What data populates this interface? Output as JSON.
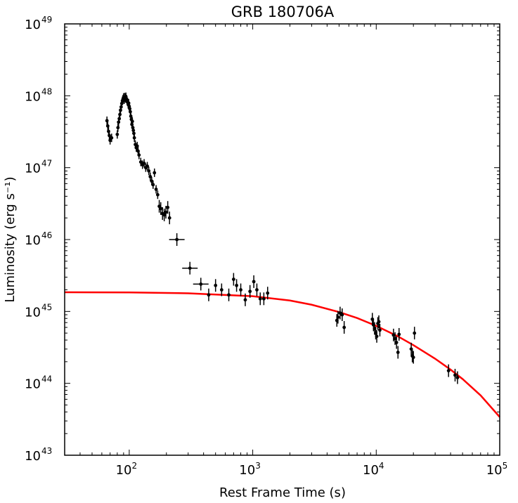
{
  "chart_data": {
    "type": "scatter",
    "title": "GRB 180706A",
    "xlabel": "Rest Frame Time (s)",
    "ylabel": "Luminosity (erg s⁻¹)",
    "xscale": "log",
    "yscale": "log",
    "xlim": [
      30,
      100000
    ],
    "ylim": [
      1e+43,
      1e+49
    ],
    "x_ticks": [
      {
        "base": "10",
        "exp": "2",
        "value": 100
      },
      {
        "base": "10",
        "exp": "3",
        "value": 1000
      },
      {
        "base": "10",
        "exp": "4",
        "value": 10000
      },
      {
        "base": "10",
        "exp": "5",
        "value": 100000
      }
    ],
    "y_ticks": [
      {
        "base": "10",
        "exp": "43",
        "value": 1e+43
      },
      {
        "base": "10",
        "exp": "44",
        "value": 1e+44
      },
      {
        "base": "10",
        "exp": "45",
        "value": 1e+45
      },
      {
        "base": "10",
        "exp": "46",
        "value": 1e+46
      },
      {
        "base": "10",
        "exp": "47",
        "value": 1e+47
      },
      {
        "base": "10",
        "exp": "48",
        "value": 1e+48
      },
      {
        "base": "10",
        "exp": "49",
        "value": 1e+49
      }
    ],
    "grid": false,
    "colors": {
      "data": "#000000",
      "model": "#ff0000"
    },
    "series": [
      {
        "kind": "points",
        "points": [
          {
            "x": 66,
            "y": 4.5e+47
          },
          {
            "x": 67,
            "y": 3.8e+47
          },
          {
            "x": 68,
            "y": 3.2e+47
          },
          {
            "x": 69,
            "y": 2.8e+47
          },
          {
            "x": 70,
            "y": 2.4e+47
          },
          {
            "x": 72,
            "y": 2.6e+47
          },
          {
            "x": 80,
            "y": 2.9e+47
          },
          {
            "x": 81,
            "y": 3.6e+47
          },
          {
            "x": 82,
            "y": 4.3e+47
          },
          {
            "x": 83,
            "y": 4.8e+47
          },
          {
            "x": 84,
            "y": 5.5e+47
          },
          {
            "x": 85,
            "y": 6.3e+47
          },
          {
            "x": 86,
            "y": 7e+47
          },
          {
            "x": 87,
            "y": 7.8e+47
          },
          {
            "x": 88,
            "y": 8.5e+47
          },
          {
            "x": 89,
            "y": 9e+47
          },
          {
            "x": 90,
            "y": 9.5e+47
          },
          {
            "x": 91,
            "y": 8.8e+47
          },
          {
            "x": 92,
            "y": 9.6e+47
          },
          {
            "x": 93,
            "y": 9.2e+47
          },
          {
            "x": 94,
            "y": 9.7e+47
          },
          {
            "x": 95,
            "y": 9e+47
          },
          {
            "x": 96,
            "y": 8.6e+47
          },
          {
            "x": 97,
            "y": 8.2e+47
          },
          {
            "x": 98,
            "y": 7.6e+47
          },
          {
            "x": 99,
            "y": 7.9e+47
          },
          {
            "x": 100,
            "y": 7.1e+47
          },
          {
            "x": 101,
            "y": 6.6e+47
          },
          {
            "x": 102,
            "y": 6e+47
          },
          {
            "x": 103,
            "y": 5.2e+47
          },
          {
            "x": 104,
            "y": 4.7e+47
          },
          {
            "x": 105,
            "y": 4e+47
          },
          {
            "x": 106,
            "y": 4.4e+47
          },
          {
            "x": 107,
            "y": 3.6e+47
          },
          {
            "x": 108,
            "y": 3.3e+47
          },
          {
            "x": 109,
            "y": 3e+47
          },
          {
            "x": 110,
            "y": 2.6e+47
          },
          {
            "x": 112,
            "y": 2.1e+47
          },
          {
            "x": 114,
            "y": 1.9e+47
          },
          {
            "x": 116,
            "y": 2e+47
          },
          {
            "x": 118,
            "y": 1.7e+47
          },
          {
            "x": 120,
            "y": 1.5e+47
          },
          {
            "x": 124,
            "y": 1.2e+47
          },
          {
            "x": 128,
            "y": 1.1e+47
          },
          {
            "x": 132,
            "y": 1.15e+47
          },
          {
            "x": 136,
            "y": 1e+47
          },
          {
            "x": 140,
            "y": 1.05e+47
          },
          {
            "x": 144,
            "y": 9e+46
          },
          {
            "x": 148,
            "y": 7.5e+46
          },
          {
            "x": 152,
            "y": 6.5e+46
          },
          {
            "x": 156,
            "y": 5.8e+46
          },
          {
            "x": 160,
            "y": 8.5e+46
          },
          {
            "x": 165,
            "y": 5e+46
          },
          {
            "x": 170,
            "y": 4.2e+46
          },
          {
            "x": 175,
            "y": 2.9e+46
          },
          {
            "x": 180,
            "y": 2.7e+46
          },
          {
            "x": 186,
            "y": 2.3e+46
          },
          {
            "x": 192,
            "y": 2.2e+46
          },
          {
            "x": 198,
            "y": 2.4e+46
          },
          {
            "x": 205,
            "y": 2.8e+46
          },
          {
            "x": 212,
            "y": 2e+46
          },
          {
            "x": 243,
            "y": 1e+46
          },
          {
            "x": 310,
            "y": 4e+45
          },
          {
            "x": 380,
            "y": 2.4e+45
          },
          {
            "x": 440,
            "y": 1.7e+45
          },
          {
            "x": 500,
            "y": 2.3e+45
          },
          {
            "x": 560,
            "y": 2e+45
          },
          {
            "x": 640,
            "y": 1.7e+45
          },
          {
            "x": 700,
            "y": 2.8e+45
          },
          {
            "x": 740,
            "y": 2.3e+45
          },
          {
            "x": 800,
            "y": 2e+45
          },
          {
            "x": 870,
            "y": 1.45e+45
          },
          {
            "x": 950,
            "y": 1.9e+45
          },
          {
            "x": 1020,
            "y": 2.6e+45
          },
          {
            "x": 1080,
            "y": 2e+45
          },
          {
            "x": 1150,
            "y": 1.5e+45
          },
          {
            "x": 1230,
            "y": 1.5e+45
          },
          {
            "x": 1320,
            "y": 1.8e+45
          },
          {
            "x": 4800,
            "y": 7.5e+44
          },
          {
            "x": 4900,
            "y": 8.3e+44
          },
          {
            "x": 5100,
            "y": 9.5e+44
          },
          {
            "x": 5300,
            "y": 9e+44
          },
          {
            "x": 5500,
            "y": 6e+44
          },
          {
            "x": 9300,
            "y": 7.8e+44
          },
          {
            "x": 9500,
            "y": 6.5e+44
          },
          {
            "x": 9700,
            "y": 5.8e+44
          },
          {
            "x": 9900,
            "y": 5e+44
          },
          {
            "x": 10100,
            "y": 4.5e+44
          },
          {
            "x": 10300,
            "y": 6.8e+44
          },
          {
            "x": 10500,
            "y": 7.2e+44
          },
          {
            "x": 10700,
            "y": 5.5e+44
          },
          {
            "x": 13800,
            "y": 4.7e+44
          },
          {
            "x": 14200,
            "y": 4.2e+44
          },
          {
            "x": 14600,
            "y": 3.7e+44
          },
          {
            "x": 15000,
            "y": 2.7e+44
          },
          {
            "x": 15300,
            "y": 4.8e+44
          },
          {
            "x": 19200,
            "y": 3e+44
          },
          {
            "x": 19600,
            "y": 2.4e+44
          },
          {
            "x": 20000,
            "y": 2.3e+44
          },
          {
            "x": 20400,
            "y": 5e+44
          },
          {
            "x": 38500,
            "y": 1.5e+44
          },
          {
            "x": 43500,
            "y": 1.3e+44
          },
          {
            "x": 45500,
            "y": 1.2e+44
          }
        ]
      },
      {
        "kind": "line",
        "points": [
          {
            "x": 30,
            "y": 1.85e+45
          },
          {
            "x": 100,
            "y": 1.84e+45
          },
          {
            "x": 300,
            "y": 1.79e+45
          },
          {
            "x": 1000,
            "y": 1.63e+45
          },
          {
            "x": 2000,
            "y": 1.42e+45
          },
          {
            "x": 3000,
            "y": 1.24e+45
          },
          {
            "x": 5000,
            "y": 9.8e+44
          },
          {
            "x": 7000,
            "y": 8.1e+44
          },
          {
            "x": 10000,
            "y": 6.3e+44
          },
          {
            "x": 15000,
            "y": 4.5e+44
          },
          {
            "x": 20000,
            "y": 3.4e+44
          },
          {
            "x": 30000,
            "y": 2.2e+44
          },
          {
            "x": 40000,
            "y": 1.55e+44
          },
          {
            "x": 50000,
            "y": 1.15e+44
          },
          {
            "x": 70000,
            "y": 6.8e+43
          },
          {
            "x": 100000,
            "y": 3.4e+43
          }
        ]
      }
    ]
  }
}
